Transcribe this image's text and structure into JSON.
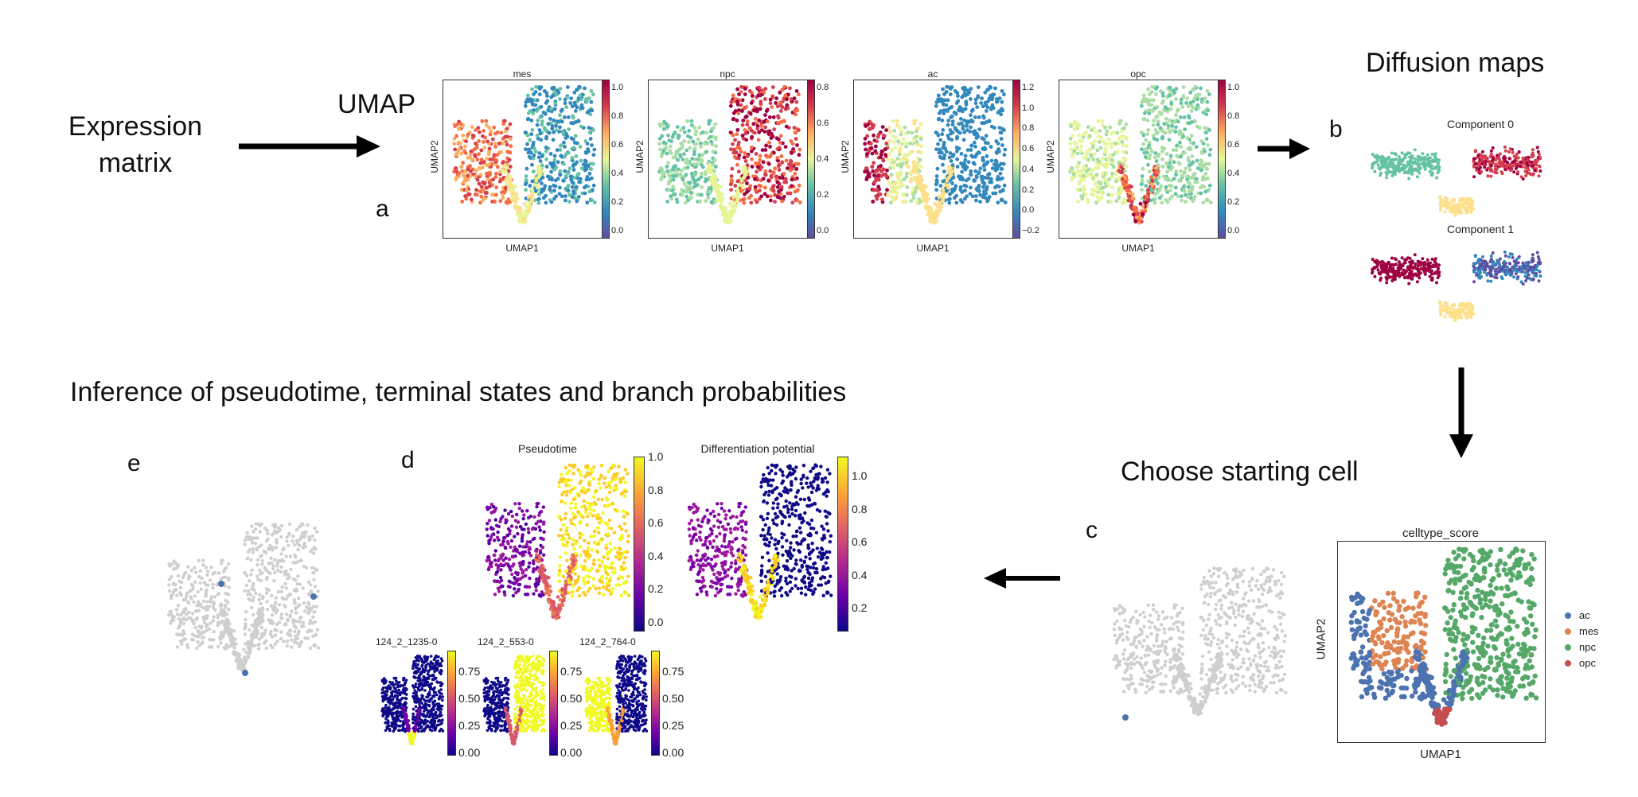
{
  "labels": {
    "expression_matrix_line1": "Expression",
    "expression_matrix_line2": "matrix",
    "umap": "UMAP",
    "diffusion_maps": "Diffusion maps",
    "inference": "Inference of pseudotime, terminal states and branch probabilities",
    "choose_starting_cell": "Choose starting cell"
  },
  "panel_letters": {
    "a": "a",
    "b": "b",
    "c": "c",
    "d": "d",
    "e": "e"
  },
  "panel_a": {
    "xlabel": "UMAP1",
    "ylabel": "UMAP2",
    "plots": [
      {
        "title": "mes",
        "ticks": [
          "1.0",
          "0.8",
          "0.6",
          "0.4",
          "0.2",
          "0.0"
        ]
      },
      {
        "title": "npc",
        "ticks": [
          "0.8",
          "0.6",
          "0.4",
          "0.2",
          "0.0"
        ]
      },
      {
        "title": "ac",
        "ticks": [
          "1.2",
          "1.0",
          "0.8",
          "0.6",
          "0.4",
          "0.2",
          "0.0",
          "−0.2"
        ]
      },
      {
        "title": "opc",
        "ticks": [
          "1.0",
          "0.8",
          "0.6",
          "0.4",
          "0.2",
          "0.0"
        ]
      }
    ]
  },
  "panel_b": {
    "titles": [
      "Component 0",
      "Component 1"
    ]
  },
  "panel_c": {
    "title": "celltype_score",
    "xlabel": "UMAP1",
    "ylabel": "UMAP2",
    "legend": [
      {
        "label": "ac",
        "color": "#4c72b0"
      },
      {
        "label": "mes",
        "color": "#dd8452"
      },
      {
        "label": "npc",
        "color": "#55a868"
      },
      {
        "label": "opc",
        "color": "#c44e52"
      }
    ]
  },
  "panel_d": {
    "pseudotime_title": "Pseudotime",
    "pseudotime_ticks": [
      "1.0",
      "0.8",
      "0.6",
      "0.4",
      "0.2",
      "0.0"
    ],
    "potential_title": "Differentiation potential",
    "potential_ticks": [
      "1.0",
      "0.8",
      "0.6",
      "0.4",
      "0.2"
    ],
    "branch_plots": [
      {
        "title": "124_2_1235-0",
        "ticks": [
          "0.75",
          "0.50",
          "0.25",
          "0.00"
        ]
      },
      {
        "title": "124_2_553-0",
        "ticks": [
          "0.75",
          "0.50",
          "0.25",
          "0.00"
        ]
      },
      {
        "title": "124_2_764-0",
        "ticks": [
          "0.75",
          "0.50",
          "0.25",
          "0.00"
        ]
      }
    ]
  },
  "colors": {
    "gray_cell": "#cfcfcf",
    "highlight_cell": "#4c72b0",
    "arrow": "#000000"
  }
}
